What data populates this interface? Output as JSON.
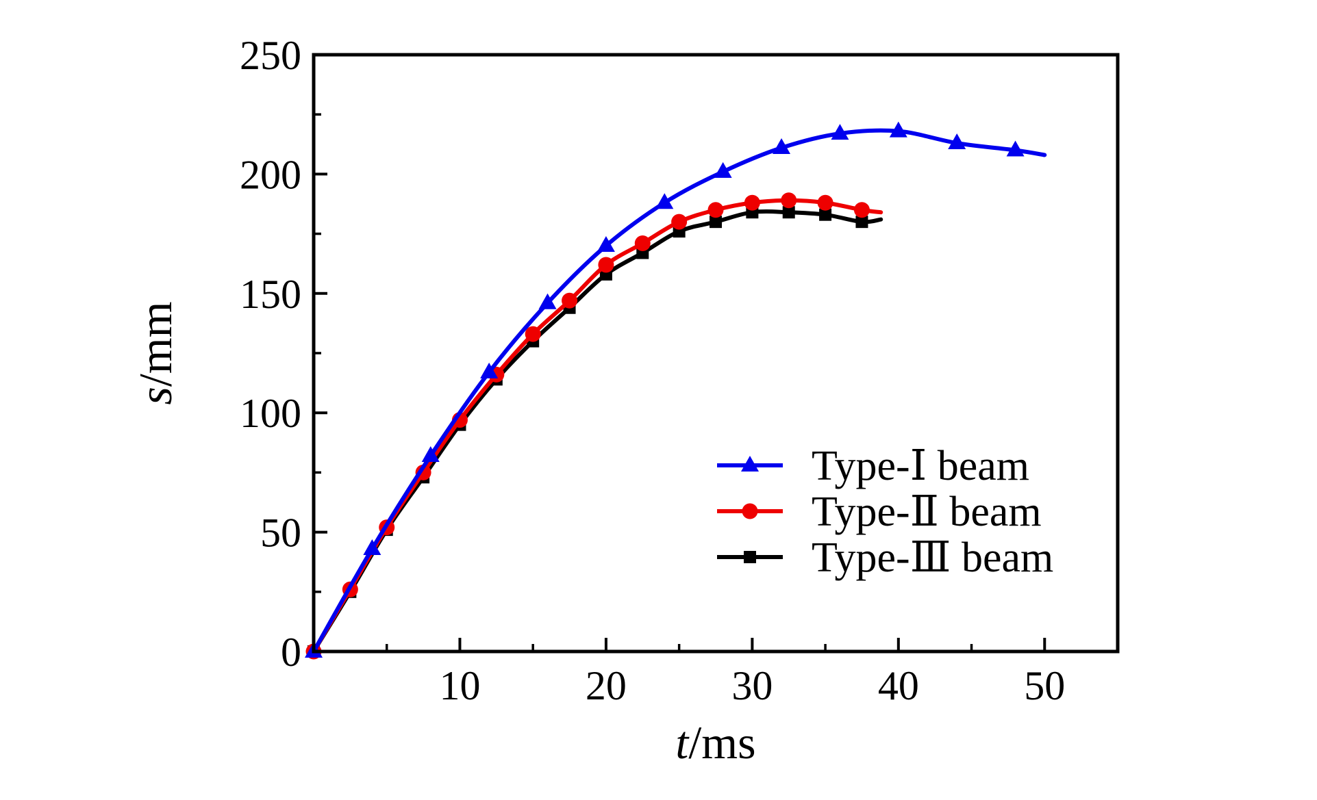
{
  "chart_data": {
    "type": "line",
    "title": "",
    "xlabel_var": "t",
    "xlabel_unit": "/ms",
    "ylabel_var": "s",
    "ylabel_unit": "/mm",
    "xlim": [
      0,
      55
    ],
    "ylim": [
      0,
      250
    ],
    "x_major_ticks": [
      10,
      20,
      30,
      40,
      50
    ],
    "x_minor_ticks": [
      5,
      15,
      25,
      35,
      45
    ],
    "y_major_ticks": [
      0,
      50,
      100,
      150,
      200,
      250
    ],
    "y_minor_ticks": [
      25,
      75,
      125,
      175,
      225
    ],
    "grid": false,
    "frame": true,
    "legend_position": "inside-right-middle",
    "axis_color": "#000000",
    "background_color": "#ffffff",
    "series": [
      {
        "name": "Type-Ⅰ beam",
        "id": "type-i",
        "color": "#0000ee",
        "marker": "triangle",
        "points": [
          [
            0,
            0
          ],
          [
            4,
            43
          ],
          [
            8,
            82
          ],
          [
            12,
            117
          ],
          [
            16,
            146
          ],
          [
            20,
            170
          ],
          [
            24,
            188
          ],
          [
            28,
            201
          ],
          [
            32,
            211
          ],
          [
            36,
            217
          ],
          [
            40,
            218
          ],
          [
            44,
            213
          ],
          [
            48,
            210
          ]
        ],
        "line_end": [
          50,
          208
        ]
      },
      {
        "name": "Type-Ⅱ beam",
        "id": "type-ii",
        "color": "#ee0000",
        "marker": "circle",
        "points": [
          [
            0,
            0
          ],
          [
            2.5,
            26
          ],
          [
            5,
            52
          ],
          [
            7.5,
            75
          ],
          [
            10,
            97
          ],
          [
            12.5,
            116
          ],
          [
            15,
            133
          ],
          [
            17.5,
            147
          ],
          [
            20,
            162
          ],
          [
            22.5,
            171
          ],
          [
            25,
            180
          ],
          [
            27.5,
            185
          ],
          [
            30,
            188
          ],
          [
            32.5,
            189
          ],
          [
            35,
            188
          ],
          [
            37.5,
            185
          ]
        ],
        "line_end": [
          38.8,
          184
        ]
      },
      {
        "name": "Type-Ⅲ beam",
        "id": "type-iii",
        "color": "#000000",
        "marker": "square",
        "points": [
          [
            0,
            0
          ],
          [
            2.5,
            25
          ],
          [
            5,
            51
          ],
          [
            7.5,
            73
          ],
          [
            10,
            95
          ],
          [
            12.5,
            114
          ],
          [
            15,
            130
          ],
          [
            17.5,
            144
          ],
          [
            20,
            158
          ],
          [
            22.5,
            167
          ],
          [
            25,
            176
          ],
          [
            27.5,
            180
          ],
          [
            30,
            184
          ],
          [
            32.5,
            184
          ],
          [
            35,
            183
          ],
          [
            37.5,
            180
          ]
        ],
        "line_end": [
          38.8,
          181
        ]
      }
    ]
  }
}
